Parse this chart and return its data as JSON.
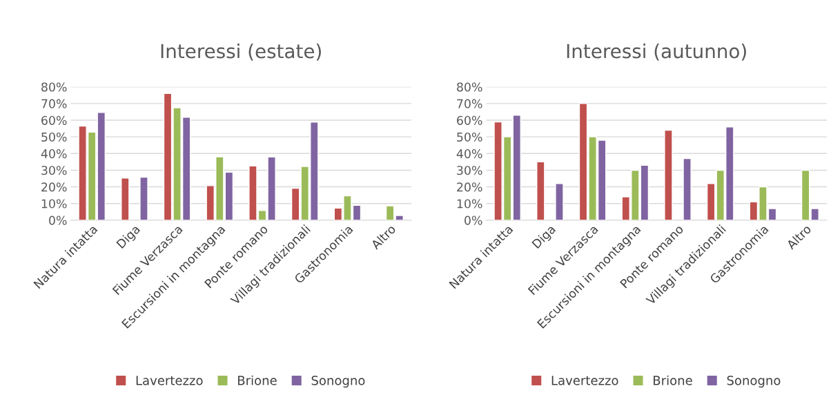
{
  "chart_data": [
    {
      "type": "bar",
      "title": "Interessi (estate)",
      "categories": [
        "Natura intatta",
        "Diga",
        "Fiume Verzasca",
        "Escursioni in montagna",
        "Ponte romano",
        "Villagi tradizionali",
        "Gastronomia",
        "Altro"
      ],
      "series": [
        {
          "name": "Lavertezzo",
          "color": "#c0504d",
          "values": [
            56.5,
            25.3,
            76,
            20.7,
            32.5,
            19.2,
            7.3,
            null
          ]
        },
        {
          "name": "Brione",
          "color": "#9bbb59",
          "values": [
            52.8,
            null,
            67.5,
            38,
            5.8,
            32.2,
            14.6,
            8.6
          ]
        },
        {
          "name": "Sonogno",
          "color": "#8064a2",
          "values": [
            64.7,
            25.8,
            61.8,
            28.8,
            37.9,
            58.9,
            8.9,
            2.8
          ]
        }
      ],
      "ylim": [
        0,
        80
      ],
      "yticks": [
        {
          "value": 0,
          "label": "0%"
        },
        {
          "value": 10,
          "label": "10%"
        },
        {
          "value": 20,
          "label": "20%"
        },
        {
          "value": 30,
          "label": "30%"
        },
        {
          "value": 40,
          "label": "40%"
        },
        {
          "value": 50,
          "label": "50%"
        },
        {
          "value": 60,
          "label": "60%"
        },
        {
          "value": 70,
          "label": "70%"
        },
        {
          "value": 80,
          "label": "80%"
        }
      ],
      "grid": "y",
      "legend": "bottom"
    },
    {
      "type": "bar",
      "title": "Interessi (autunno)",
      "categories": [
        "Natura intatta",
        "Diga",
        "Fiume Verzasca",
        "Escursioni in montagna",
        "Ponte romano",
        "Villagi tradizionali",
        "Gastronomia",
        "Altro"
      ],
      "series": [
        {
          "name": "Lavertezzo",
          "color": "#c0504d",
          "values": [
            59,
            35,
            70,
            14,
            54,
            22,
            11,
            null
          ]
        },
        {
          "name": "Brione",
          "color": "#9bbb59",
          "values": [
            50,
            null,
            50,
            30,
            null,
            30,
            20,
            30
          ]
        },
        {
          "name": "Sonogno",
          "color": "#8064a2",
          "values": [
            63,
            22,
            48,
            33,
            37,
            56,
            7,
            7
          ]
        }
      ],
      "ylim": [
        0,
        80
      ],
      "yticks": [
        {
          "value": 0,
          "label": "0%"
        },
        {
          "value": 10,
          "label": "10%"
        },
        {
          "value": 20,
          "label": "20%"
        },
        {
          "value": 30,
          "label": "30%"
        },
        {
          "value": 40,
          "label": "40%"
        },
        {
          "value": 50,
          "label": "50%"
        },
        {
          "value": 60,
          "label": "60%"
        },
        {
          "value": 70,
          "label": "70%"
        },
        {
          "value": 80,
          "label": "80%"
        }
      ],
      "grid": "y",
      "legend": "bottom"
    }
  ]
}
